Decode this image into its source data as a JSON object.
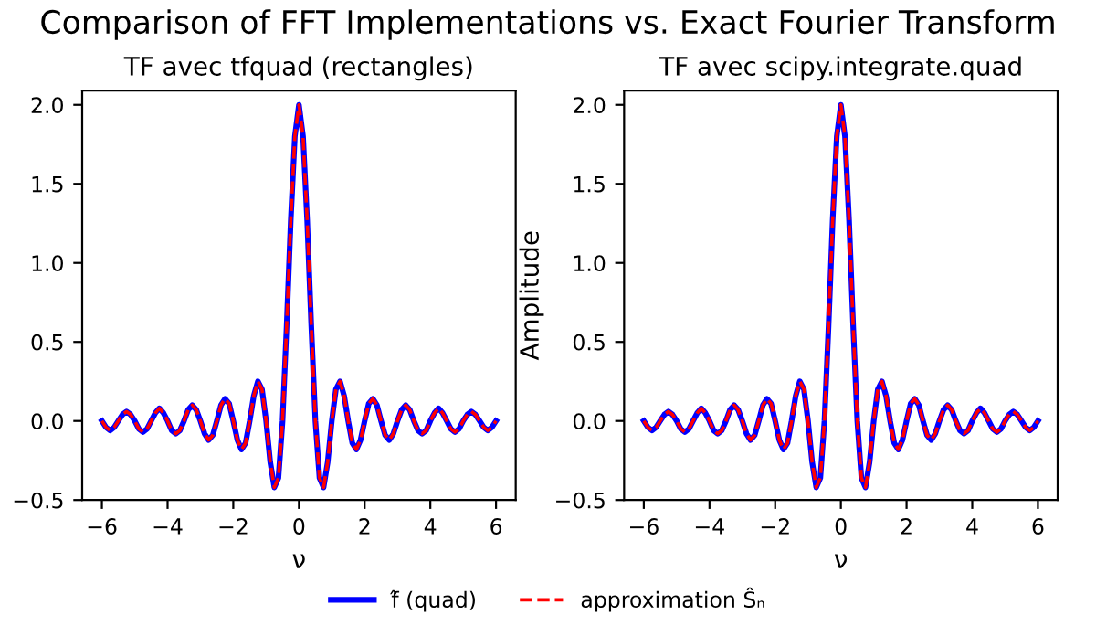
{
  "chart_data": [
    {
      "type": "line",
      "title": "TF avec tfquad (rectangles)",
      "xlabel": "ν",
      "annotations": [
        "Comparison of FFT Implementations vs. Exact Fourier Transform"
      ],
      "x": [
        -6,
        -5.875,
        -5.75,
        -5.625,
        -5.5,
        -5.375,
        -5.25,
        -5.125,
        -5,
        -4.875,
        -4.75,
        -4.625,
        -4.5,
        -4.375,
        -4.25,
        -4.125,
        -4,
        -3.875,
        -3.75,
        -3.625,
        -3.5,
        -3.375,
        -3.25,
        -3.125,
        -3,
        -2.875,
        -2.75,
        -2.625,
        -2.5,
        -2.375,
        -2.25,
        -2.125,
        -2,
        -1.875,
        -1.75,
        -1.625,
        -1.5,
        -1.375,
        -1.25,
        -1.125,
        -1,
        -0.875,
        -0.75,
        -0.625,
        -0.5,
        -0.375,
        -0.25,
        -0.125,
        0,
        0.125,
        0.25,
        0.375,
        0.5,
        0.625,
        0.75,
        0.875,
        1,
        1.125,
        1.25,
        1.375,
        1.5,
        1.625,
        1.75,
        1.875,
        2,
        2.125,
        2.25,
        2.375,
        2.5,
        2.625,
        2.75,
        2.875,
        3,
        3.125,
        3.25,
        3.375,
        3.5,
        3.625,
        3.75,
        3.875,
        4,
        4.125,
        4.25,
        4.375,
        4.5,
        4.625,
        4.75,
        4.875,
        5,
        5.125,
        5.25,
        5.375,
        5.5,
        5.625,
        5.75,
        5.875,
        6
      ],
      "series": [
        {
          "name": "f̂ (quad)",
          "color": "#0000ff",
          "line_style": "solid",
          "values": [
            0,
            -0.04,
            -0.06,
            -0.04,
            0,
            0.04,
            0.06,
            0.04,
            0,
            -0.05,
            -0.07,
            -0.05,
            0,
            0.05,
            0.08,
            0.05,
            0,
            -0.06,
            -0.08,
            -0.06,
            0,
            0.07,
            0.1,
            0.07,
            0,
            -0.08,
            -0.12,
            -0.09,
            0,
            0.1,
            0.14,
            0.11,
            0,
            -0.12,
            -0.18,
            -0.14,
            0,
            0.16,
            0.25,
            0.2,
            0,
            -0.26,
            -0.42,
            -0.36,
            0,
            0.6,
            1.27,
            1.8,
            2.0,
            1.8,
            1.27,
            0.6,
            0,
            -0.36,
            -0.42,
            -0.26,
            0,
            0.2,
            0.25,
            0.16,
            0,
            -0.14,
            -0.18,
            -0.12,
            0,
            0.11,
            0.14,
            0.1,
            0,
            -0.09,
            -0.12,
            -0.08,
            0,
            0.07,
            0.1,
            0.07,
            0,
            -0.06,
            -0.08,
            -0.06,
            0,
            0.05,
            0.08,
            0.05,
            0,
            -0.05,
            -0.07,
            -0.05,
            0,
            0.04,
            0.06,
            0.04,
            0,
            -0.04,
            -0.06,
            -0.04,
            0
          ]
        },
        {
          "name": "approximation Ŝₙ",
          "color": "#ff0000",
          "line_style": "dashed",
          "values": [
            0,
            -0.04,
            -0.06,
            -0.04,
            0,
            0.04,
            0.06,
            0.04,
            0,
            -0.05,
            -0.07,
            -0.05,
            0,
            0.05,
            0.08,
            0.05,
            0,
            -0.06,
            -0.08,
            -0.06,
            0,
            0.07,
            0.1,
            0.07,
            0,
            -0.08,
            -0.12,
            -0.09,
            0,
            0.1,
            0.14,
            0.11,
            0,
            -0.12,
            -0.18,
            -0.14,
            0,
            0.16,
            0.25,
            0.2,
            0,
            -0.26,
            -0.42,
            -0.36,
            0,
            0.6,
            1.27,
            1.8,
            2.0,
            1.8,
            1.27,
            0.6,
            0,
            -0.36,
            -0.42,
            -0.26,
            0,
            0.2,
            0.25,
            0.16,
            0,
            -0.14,
            -0.18,
            -0.12,
            0,
            0.11,
            0.14,
            0.1,
            0,
            -0.09,
            -0.12,
            -0.08,
            0,
            0.07,
            0.1,
            0.07,
            0,
            -0.06,
            -0.08,
            -0.06,
            0,
            0.05,
            0.08,
            0.05,
            0,
            -0.05,
            -0.07,
            -0.05,
            0,
            0.04,
            0.06,
            0.04,
            0,
            -0.04,
            -0.06,
            -0.04,
            0
          ]
        }
      ],
      "xlim": [
        -6.6,
        6.6
      ],
      "xticks": [
        {
          "value": -6,
          "label": "−6"
        },
        {
          "value": -4,
          "label": "−4"
        },
        {
          "value": -2,
          "label": "−2"
        },
        0,
        2,
        4,
        6
      ],
      "ylim": [
        -0.5,
        2.09
      ],
      "yticks": [
        {
          "value": -0.5,
          "label": "−0.5"
        },
        {
          "value": 0,
          "label": "0.0"
        },
        {
          "value": 0.5,
          "label": "0.5"
        },
        {
          "value": 1,
          "label": "1.0"
        },
        {
          "value": 1.5,
          "label": "1.5"
        },
        {
          "value": 2,
          "label": "2.0"
        }
      ],
      "legend": "bottom",
      "grid": false
    },
    {
      "type": "line",
      "title": "TF avec scipy.integrate.quad",
      "xlabel": "ν",
      "ylabel": "Amplitude",
      "x": [
        -6,
        -5.875,
        -5.75,
        -5.625,
        -5.5,
        -5.375,
        -5.25,
        -5.125,
        -5,
        -4.875,
        -4.75,
        -4.625,
        -4.5,
        -4.375,
        -4.25,
        -4.125,
        -4,
        -3.875,
        -3.75,
        -3.625,
        -3.5,
        -3.375,
        -3.25,
        -3.125,
        -3,
        -2.875,
        -2.75,
        -2.625,
        -2.5,
        -2.375,
        -2.25,
        -2.125,
        -2,
        -1.875,
        -1.75,
        -1.625,
        -1.5,
        -1.375,
        -1.25,
        -1.125,
        -1,
        -0.875,
        -0.75,
        -0.625,
        -0.5,
        -0.375,
        -0.25,
        -0.125,
        0,
        0.125,
        0.25,
        0.375,
        0.5,
        0.625,
        0.75,
        0.875,
        1,
        1.125,
        1.25,
        1.375,
        1.5,
        1.625,
        1.75,
        1.875,
        2,
        2.125,
        2.25,
        2.375,
        2.5,
        2.625,
        2.75,
        2.875,
        3,
        3.125,
        3.25,
        3.375,
        3.5,
        3.625,
        3.75,
        3.875,
        4,
        4.125,
        4.25,
        4.375,
        4.5,
        4.625,
        4.75,
        4.875,
        5,
        5.125,
        5.25,
        5.375,
        5.5,
        5.625,
        5.75,
        5.875,
        6
      ],
      "series": [
        {
          "color": "#0000ff",
          "line_style": "solid",
          "values": [
            0,
            -0.04,
            -0.06,
            -0.04,
            0,
            0.04,
            0.06,
            0.04,
            0,
            -0.05,
            -0.07,
            -0.05,
            0,
            0.05,
            0.08,
            0.05,
            0,
            -0.06,
            -0.08,
            -0.06,
            0,
            0.07,
            0.1,
            0.07,
            0,
            -0.08,
            -0.12,
            -0.09,
            0,
            0.1,
            0.14,
            0.11,
            0,
            -0.12,
            -0.18,
            -0.14,
            0,
            0.16,
            0.25,
            0.2,
            0,
            -0.26,
            -0.42,
            -0.36,
            0,
            0.6,
            1.27,
            1.8,
            2.0,
            1.8,
            1.27,
            0.6,
            0,
            -0.36,
            -0.42,
            -0.26,
            0,
            0.2,
            0.25,
            0.16,
            0,
            -0.14,
            -0.18,
            -0.12,
            0,
            0.11,
            0.14,
            0.1,
            0,
            -0.09,
            -0.12,
            -0.08,
            0,
            0.07,
            0.1,
            0.07,
            0,
            -0.06,
            -0.08,
            -0.06,
            0,
            0.05,
            0.08,
            0.05,
            0,
            -0.05,
            -0.07,
            -0.05,
            0,
            0.04,
            0.06,
            0.04,
            0,
            -0.04,
            -0.06,
            -0.04,
            0
          ]
        },
        {
          "color": "#ff0000",
          "line_style": "dashed",
          "values": [
            0,
            -0.04,
            -0.06,
            -0.04,
            0,
            0.04,
            0.06,
            0.04,
            0,
            -0.05,
            -0.07,
            -0.05,
            0,
            0.05,
            0.08,
            0.05,
            0,
            -0.06,
            -0.08,
            -0.06,
            0,
            0.07,
            0.1,
            0.07,
            0,
            -0.08,
            -0.12,
            -0.09,
            0,
            0.1,
            0.14,
            0.11,
            0,
            -0.12,
            -0.18,
            -0.14,
            0,
            0.16,
            0.25,
            0.2,
            0,
            -0.26,
            -0.42,
            -0.36,
            0,
            0.6,
            1.27,
            1.8,
            2.0,
            1.8,
            1.27,
            0.6,
            0,
            -0.36,
            -0.42,
            -0.26,
            0,
            0.2,
            0.25,
            0.16,
            0,
            -0.14,
            -0.18,
            -0.12,
            0,
            0.11,
            0.14,
            0.1,
            0,
            -0.09,
            -0.12,
            -0.08,
            0,
            0.07,
            0.1,
            0.07,
            0,
            -0.06,
            -0.08,
            -0.06,
            0,
            0.05,
            0.08,
            0.05,
            0,
            -0.05,
            -0.07,
            -0.05,
            0,
            0.04,
            0.06,
            0.04,
            0,
            -0.04,
            -0.06,
            -0.04,
            0
          ]
        }
      ],
      "xlim": [
        -6.6,
        6.6
      ],
      "xticks": [
        {
          "value": -6,
          "label": "−6"
        },
        {
          "value": -4,
          "label": "−4"
        },
        {
          "value": -2,
          "label": "−2"
        },
        0,
        2,
        4,
        6
      ],
      "ylim": [
        -0.5,
        2.09
      ],
      "yticks": [
        {
          "value": -0.5,
          "label": "−0.5"
        },
        {
          "value": 0,
          "label": "0.0"
        },
        {
          "value": 0.5,
          "label": "0.5"
        },
        {
          "value": 1,
          "label": "1.0"
        },
        {
          "value": 1.5,
          "label": "1.5"
        },
        {
          "value": 2,
          "label": "2.0"
        }
      ],
      "grid": false
    }
  ]
}
